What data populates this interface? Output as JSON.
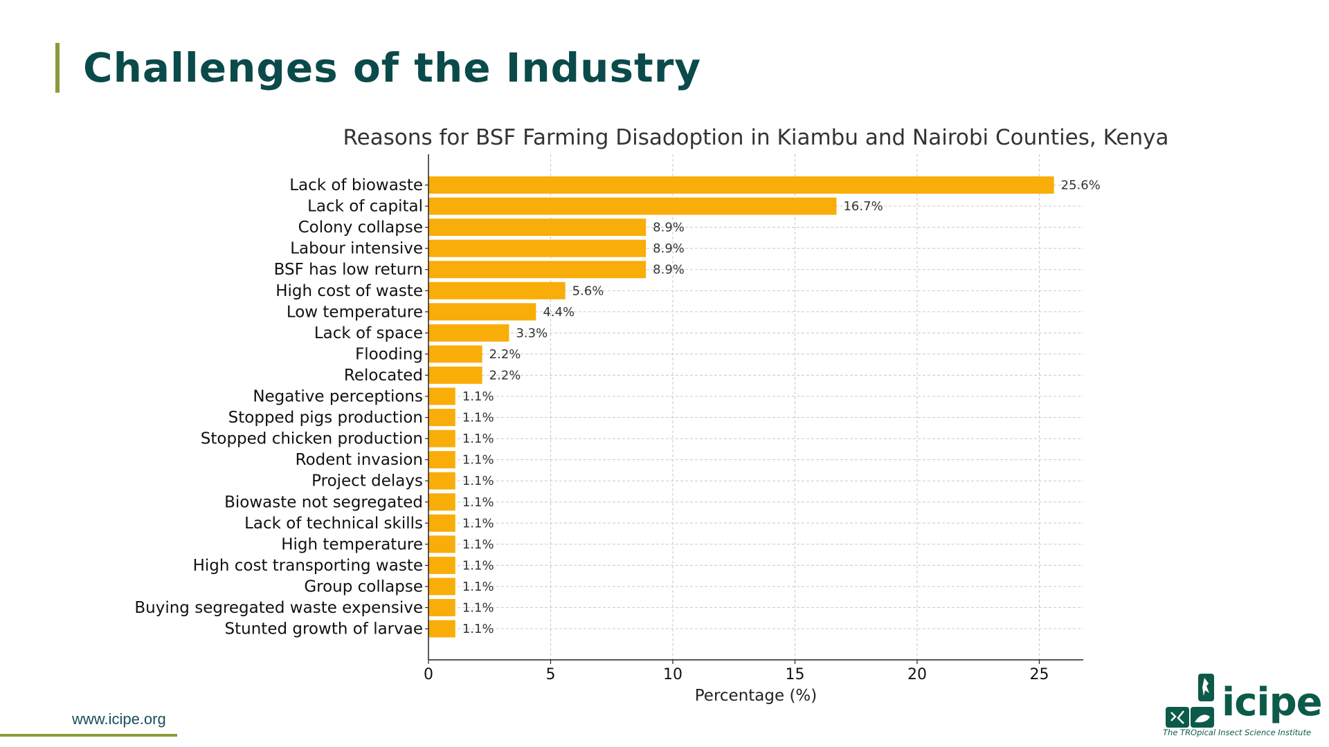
{
  "slide": {
    "title": "Challenges of the Industry",
    "footer_url": "www.icipe.org",
    "logo_text": "icipe",
    "logo_tagline": "The TROpical Insect Science Institute"
  },
  "colors": {
    "bar": "#f9ad08",
    "title": "#0b4a4a",
    "accent": "#8a9a3a",
    "axis": "#222222",
    "grid": "#c8c8c8"
  },
  "chart_data": {
    "type": "bar",
    "orientation": "horizontal",
    "title": "Reasons for BSF Farming Disadoption in Kiambu and Nairobi Counties, Kenya",
    "xlabel": "Percentage (%)",
    "ylabel": "",
    "xlim": [
      0,
      26.8
    ],
    "xticks": [
      0,
      5,
      10,
      15,
      20,
      25
    ],
    "grid": true,
    "categories": [
      "Lack of biowaste",
      "Lack of capital",
      "Colony collapse",
      "Labour intensive",
      "BSF has low return",
      "High cost of waste",
      "Low temperature",
      "Lack of space",
      "Flooding",
      "Relocated",
      "Negative perceptions",
      "Stopped pigs production",
      "Stopped chicken production",
      "Rodent invasion",
      "Project delays",
      "Biowaste not segregated",
      "Lack of technical skills",
      "High temperature",
      "High cost transporting waste",
      "Group collapse",
      "Buying segregated waste expensive",
      "Stunted growth of larvae"
    ],
    "values": [
      25.6,
      16.7,
      8.9,
      8.9,
      8.9,
      5.6,
      4.4,
      3.3,
      2.2,
      2.2,
      1.1,
      1.1,
      1.1,
      1.1,
      1.1,
      1.1,
      1.1,
      1.1,
      1.1,
      1.1,
      1.1,
      1.1
    ],
    "data_labels": [
      "25.6%",
      "16.7%",
      "8.9%",
      "8.9%",
      "8.9%",
      "5.6%",
      "4.4%",
      "3.3%",
      "2.2%",
      "2.2%",
      "1.1%",
      "1.1%",
      "1.1%",
      "1.1%",
      "1.1%",
      "1.1%",
      "1.1%",
      "1.1%",
      "1.1%",
      "1.1%",
      "1.1%",
      "1.1%"
    ]
  }
}
